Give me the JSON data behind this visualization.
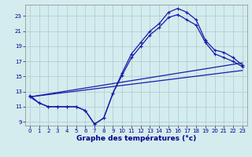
{
  "title": "Graphe des températures (°c)",
  "background_color": "#d4ecee",
  "grid_color": "#b0d0d4",
  "line_color": "#1a1aaa",
  "xlim": [
    -0.5,
    23.5
  ],
  "ylim": [
    8.5,
    24.5
  ],
  "xticks": [
    0,
    1,
    2,
    3,
    4,
    5,
    6,
    7,
    8,
    9,
    10,
    11,
    12,
    13,
    14,
    15,
    16,
    17,
    18,
    19,
    20,
    21,
    22,
    23
  ],
  "yticks": [
    9,
    11,
    13,
    15,
    17,
    19,
    21,
    23
  ],
  "curve1_x": [
    0,
    1,
    2,
    3,
    4,
    5,
    6,
    7,
    8,
    9,
    10,
    11,
    12,
    13,
    14,
    15,
    16,
    17,
    18,
    19,
    20,
    21,
    22,
    23
  ],
  "curve1_y": [
    12.5,
    11.5,
    11,
    11,
    11,
    11,
    10.5,
    8.7,
    9.5,
    12.8,
    15.5,
    18,
    19.5,
    21,
    22,
    23.5,
    24.0,
    23.5,
    22.5,
    19.8,
    18.5,
    18.2,
    17.5,
    16.5
  ],
  "curve2_x": [
    0,
    1,
    2,
    3,
    4,
    5,
    6,
    7,
    8,
    9,
    10,
    11,
    12,
    13,
    14,
    15,
    16,
    17,
    18,
    19,
    20,
    21,
    22,
    23
  ],
  "curve2_y": [
    12.3,
    11.5,
    11,
    11,
    11,
    11,
    10.5,
    8.7,
    9.5,
    12.8,
    15.2,
    17.5,
    19.0,
    20.5,
    21.5,
    22.8,
    23.2,
    22.5,
    21.8,
    19.5,
    18.0,
    17.5,
    17.0,
    16.3
  ],
  "line3_x": [
    0,
    23
  ],
  "line3_y": [
    12.3,
    16.8
  ],
  "line4_x": [
    0,
    23
  ],
  "line4_y": [
    12.3,
    15.8
  ]
}
